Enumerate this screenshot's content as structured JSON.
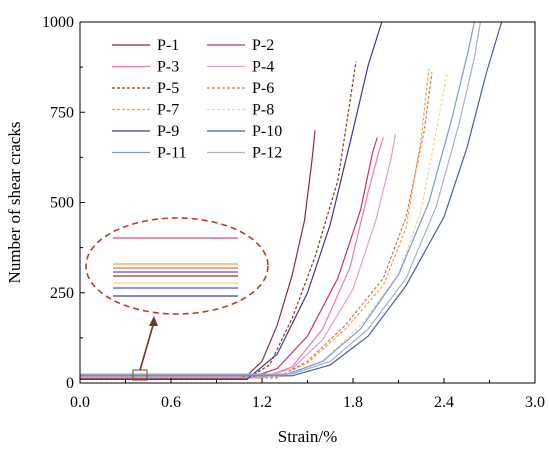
{
  "chart_data": {
    "type": "line",
    "xlabel": "Strain/%",
    "ylabel": "Number of shear cracks",
    "xlim": [
      0,
      3.0
    ],
    "ylim": [
      0,
      1000
    ],
    "xticks": [
      "0.0",
      "0.6",
      "1.2",
      "1.8",
      "2.4",
      "3.0"
    ],
    "yticks": [
      "0",
      "250",
      "500",
      "750",
      "1000"
    ],
    "legend_position": "top-left",
    "grid": false,
    "series": [
      {
        "name": "P-1",
        "color": "#8b2a4a",
        "dash": "solid",
        "points": [
          [
            0,
            10
          ],
          [
            1.0,
            10
          ],
          [
            1.1,
            20
          ],
          [
            1.2,
            60
          ],
          [
            1.3,
            160
          ],
          [
            1.4,
            300
          ],
          [
            1.48,
            450
          ],
          [
            1.53,
            620
          ],
          [
            1.55,
            700
          ]
        ]
      },
      {
        "name": "P-2",
        "color": "#c2336e",
        "dash": "solid",
        "points": [
          [
            0,
            12
          ],
          [
            1.1,
            12
          ],
          [
            1.3,
            40
          ],
          [
            1.5,
            130
          ],
          [
            1.7,
            290
          ],
          [
            1.85,
            480
          ],
          [
            1.93,
            640
          ],
          [
            1.96,
            680
          ]
        ]
      },
      {
        "name": "P-3",
        "color": "#f07aa8",
        "dash": "solid",
        "points": [
          [
            0,
            14
          ],
          [
            1.2,
            14
          ],
          [
            1.4,
            45
          ],
          [
            1.6,
            150
          ],
          [
            1.78,
            320
          ],
          [
            1.9,
            530
          ],
          [
            1.97,
            640
          ],
          [
            2.0,
            680
          ]
        ]
      },
      {
        "name": "P-4",
        "color": "#dfa0d0",
        "dash": "solid",
        "points": [
          [
            0,
            16
          ],
          [
            1.2,
            16
          ],
          [
            1.4,
            40
          ],
          [
            1.6,
            120
          ],
          [
            1.8,
            260
          ],
          [
            1.95,
            450
          ],
          [
            2.05,
            620
          ],
          [
            2.08,
            690
          ]
        ]
      },
      {
        "name": "P-5",
        "color": "#8b3a1a",
        "dash": "dashed",
        "points": [
          [
            0,
            12
          ],
          [
            1.1,
            12
          ],
          [
            1.25,
            50
          ],
          [
            1.4,
            180
          ],
          [
            1.55,
            350
          ],
          [
            1.7,
            560
          ],
          [
            1.78,
            780
          ],
          [
            1.82,
            890
          ]
        ]
      },
      {
        "name": "P-6",
        "color": "#e0705a",
        "dash": "dashed",
        "points": [
          [
            0,
            14
          ],
          [
            1.3,
            14
          ],
          [
            1.5,
            60
          ],
          [
            1.75,
            160
          ],
          [
            2.0,
            290
          ],
          [
            2.15,
            460
          ],
          [
            2.27,
            700
          ],
          [
            2.32,
            860
          ]
        ]
      },
      {
        "name": "P-7",
        "color": "#f5a33a",
        "dash": "dashed",
        "points": [
          [
            0,
            16
          ],
          [
            1.3,
            16
          ],
          [
            1.5,
            55
          ],
          [
            1.75,
            150
          ],
          [
            2.0,
            270
          ],
          [
            2.15,
            430
          ],
          [
            2.25,
            680
          ],
          [
            2.3,
            870
          ]
        ]
      },
      {
        "name": "P-8",
        "color": "#f2d38a",
        "dash": "dashed",
        "points": [
          [
            0,
            18
          ],
          [
            1.35,
            18
          ],
          [
            1.6,
            60
          ],
          [
            1.85,
            160
          ],
          [
            2.1,
            300
          ],
          [
            2.25,
            480
          ],
          [
            2.36,
            720
          ],
          [
            2.42,
            860
          ]
        ]
      },
      {
        "name": "P-9",
        "color": "#3a3a9a",
        "dash": "solid",
        "points": [
          [
            0,
            10
          ],
          [
            1.1,
            10
          ],
          [
            1.3,
            80
          ],
          [
            1.5,
            250
          ],
          [
            1.65,
            440
          ],
          [
            1.8,
            700
          ],
          [
            1.9,
            880
          ],
          [
            1.99,
            1000
          ]
        ]
      },
      {
        "name": "P-10",
        "color": "#4a5ab0",
        "dash": "solid",
        "points": [
          [
            0,
            20
          ],
          [
            1.4,
            20
          ],
          [
            1.65,
            50
          ],
          [
            1.9,
            130
          ],
          [
            2.15,
            270
          ],
          [
            2.4,
            460
          ],
          [
            2.55,
            650
          ],
          [
            2.68,
            860
          ],
          [
            2.78,
            1000
          ]
        ]
      },
      {
        "name": "P-11",
        "color": "#7a9ad0",
        "dash": "solid",
        "points": [
          [
            0,
            22
          ],
          [
            1.35,
            22
          ],
          [
            1.6,
            60
          ],
          [
            1.85,
            150
          ],
          [
            2.1,
            300
          ],
          [
            2.3,
            500
          ],
          [
            2.45,
            730
          ],
          [
            2.56,
            920
          ],
          [
            2.6,
            1000
          ]
        ]
      },
      {
        "name": "P-12",
        "color": "#a9b0c8",
        "dash": "solid",
        "points": [
          [
            0,
            25
          ],
          [
            1.4,
            25
          ],
          [
            1.65,
            60
          ],
          [
            1.9,
            150
          ],
          [
            2.15,
            290
          ],
          [
            2.35,
            490
          ],
          [
            2.5,
            720
          ],
          [
            2.6,
            900
          ],
          [
            2.64,
            1000
          ]
        ]
      }
    ],
    "inset": {
      "annotation": "zoom of initial plateau",
      "lines": [
        {
          "color": "#d84a8a"
        },
        {
          "color": "#f5a33a"
        },
        {
          "color": "#e0705a"
        },
        {
          "color": "#7a4aa0"
        },
        {
          "color": "#8b3a1a"
        },
        {
          "color": "#f2d38a"
        },
        {
          "color": "#4a5ab0"
        },
        {
          "color": "#3a3a9a"
        }
      ]
    }
  }
}
